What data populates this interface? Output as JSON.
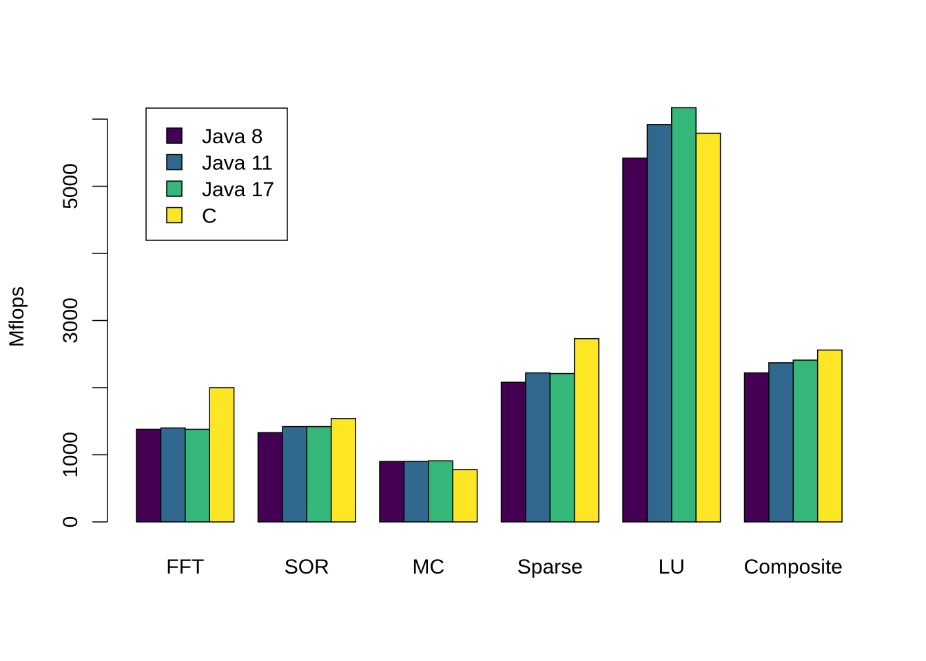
{
  "chart_data": {
    "type": "bar",
    "title": "",
    "xlabel": "",
    "ylabel": "Mflops",
    "ylim": [
      0,
      6000
    ],
    "yticks": [
      0,
      1000,
      2000,
      3000,
      4000,
      5000,
      6000
    ],
    "ytick_labels": [
      "0",
      "1000",
      "",
      "3000",
      "",
      "5000",
      ""
    ],
    "grid": false,
    "legend_position": "top-left",
    "categories": [
      "FFT",
      "SOR",
      "MC",
      "Sparse",
      "LU",
      "Composite"
    ],
    "series": [
      {
        "name": "Java 8",
        "color": "#440154",
        "values": [
          1380,
          1330,
          900,
          2080,
          5420,
          2220
        ]
      },
      {
        "name": "Java 11",
        "color": "#31688E",
        "values": [
          1400,
          1420,
          900,
          2220,
          5920,
          2370
        ]
      },
      {
        "name": "Java 17",
        "color": "#35B779",
        "values": [
          1380,
          1420,
          910,
          2210,
          6170,
          2410
        ]
      },
      {
        "name": "C",
        "color": "#FDE725",
        "values": [
          2000,
          1540,
          780,
          2730,
          5790,
          2560
        ]
      }
    ]
  }
}
